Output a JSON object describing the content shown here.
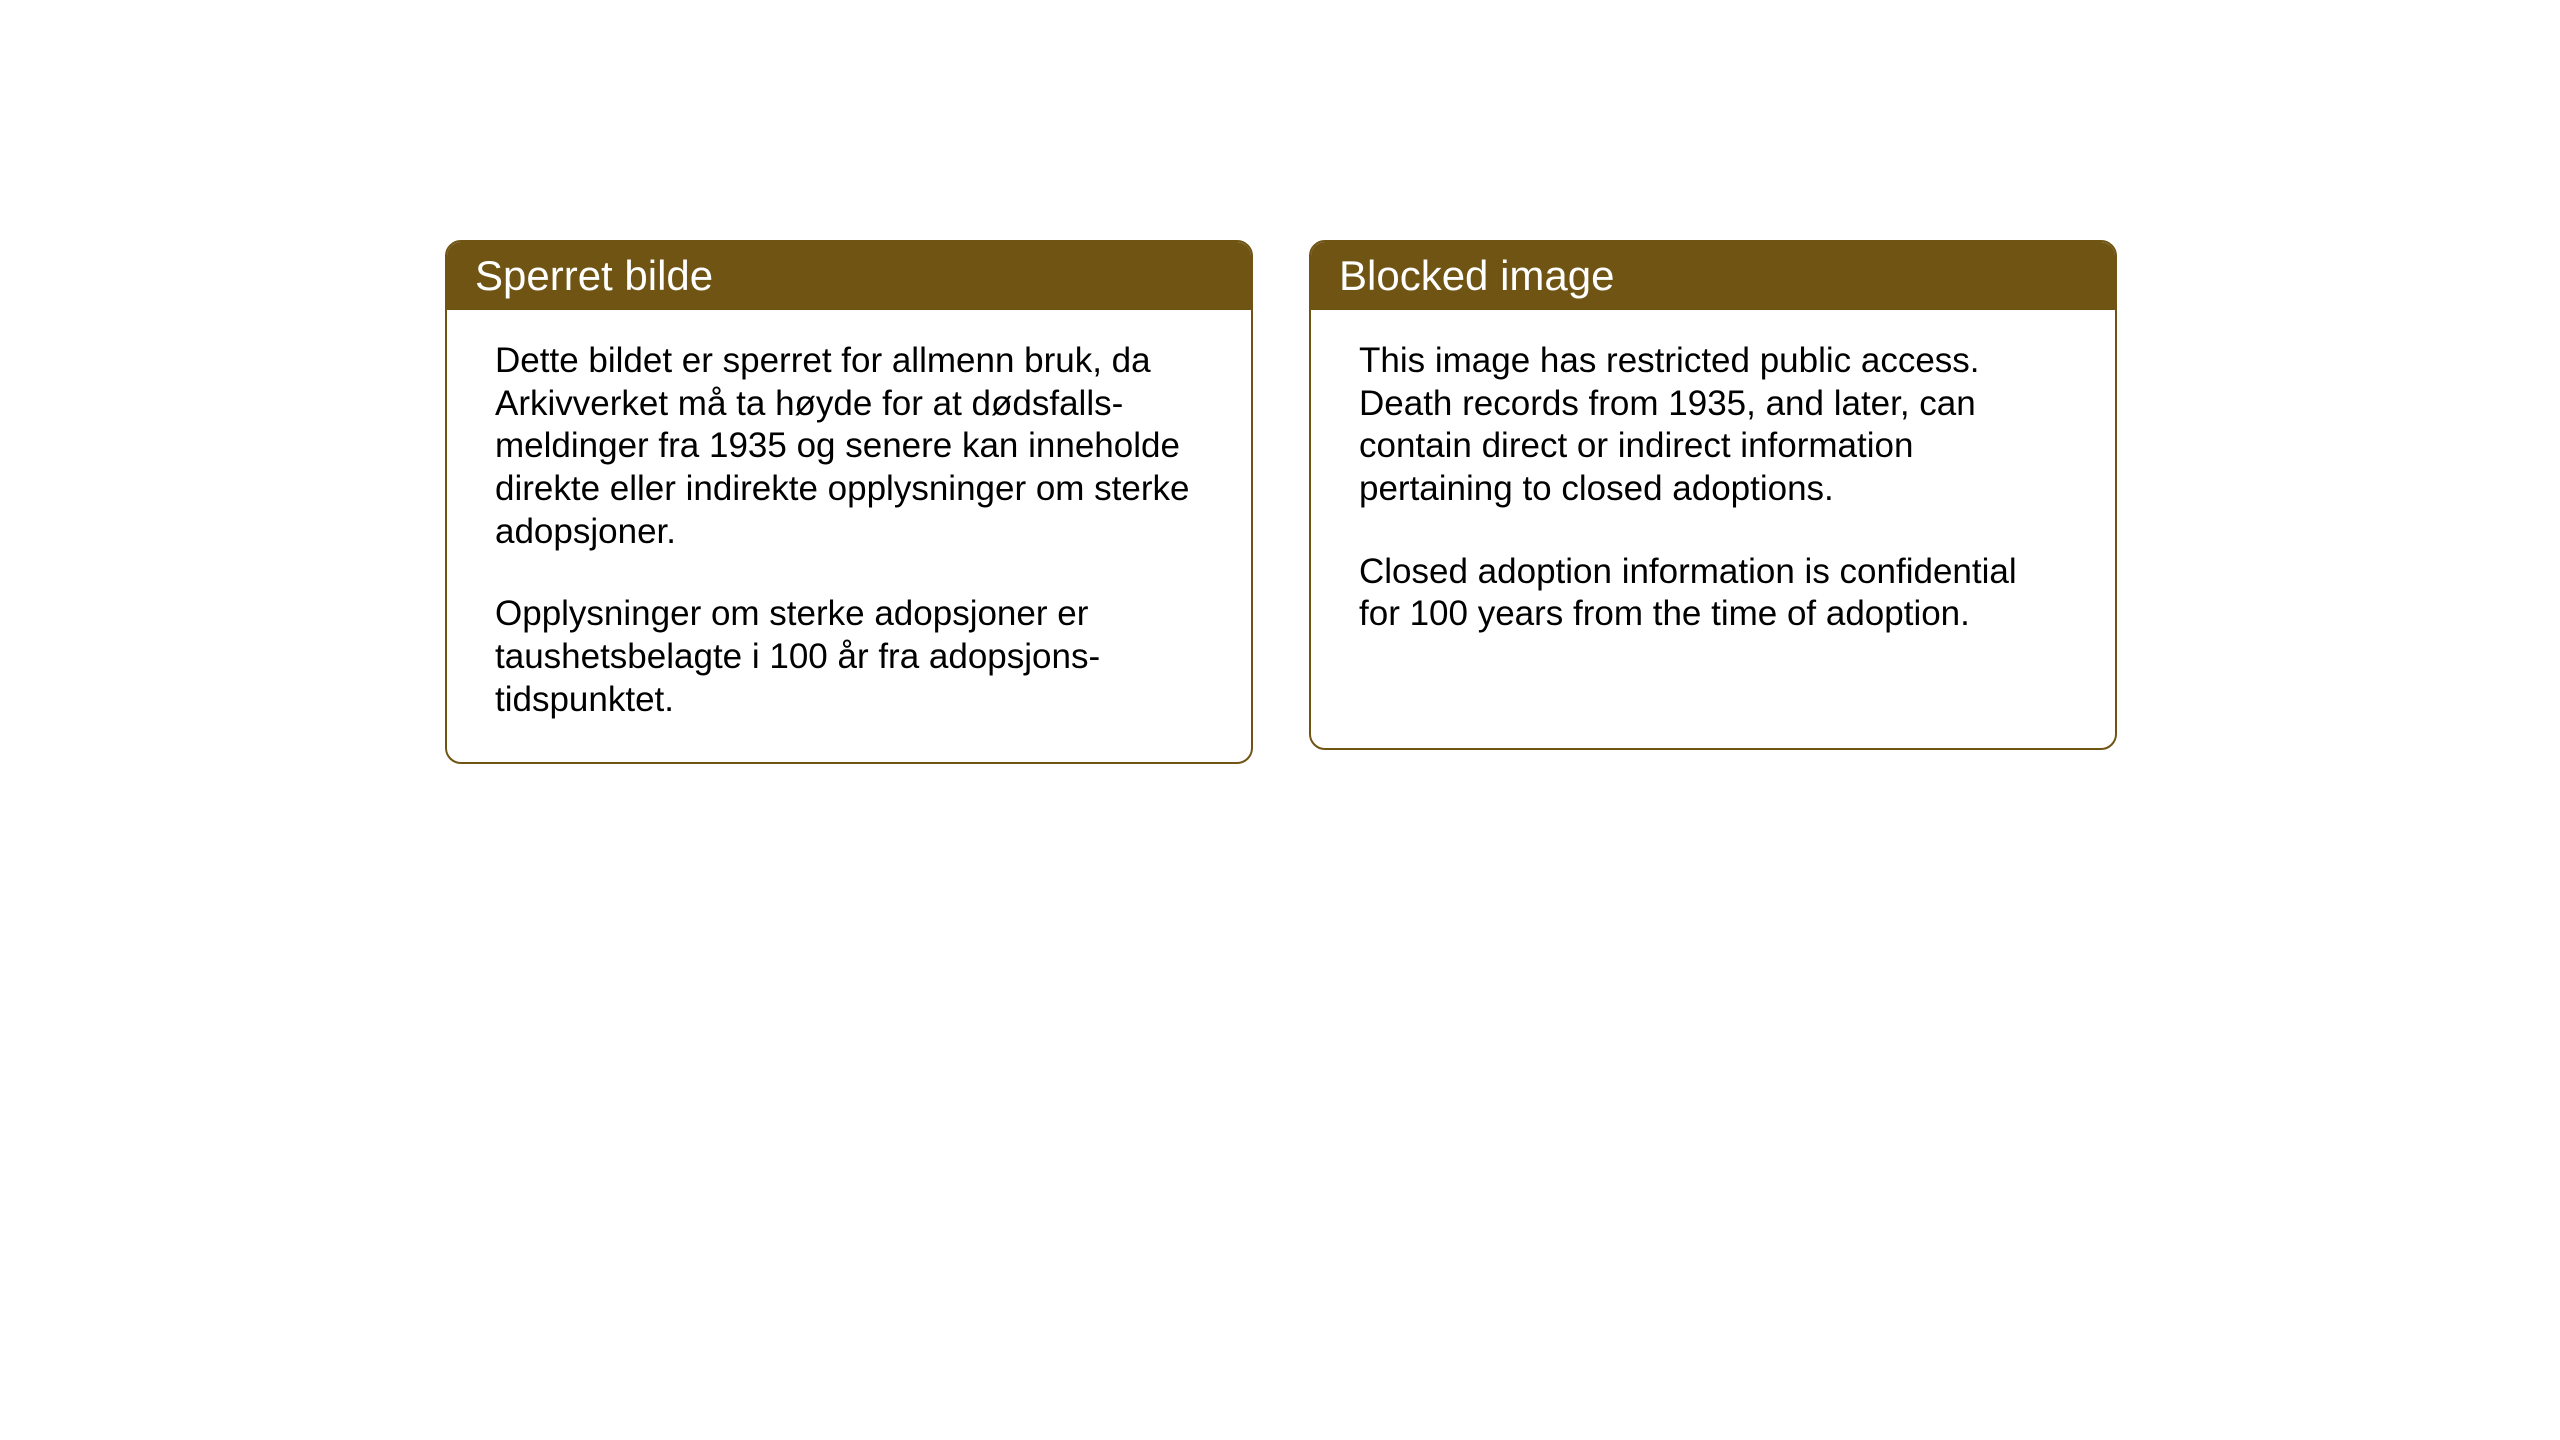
{
  "layout": {
    "background_color": "#ffffff",
    "card_border_color": "#6f5414",
    "card_border_radius": 16,
    "header_background_color": "#6f5414",
    "header_text_color": "#ffffff",
    "body_text_color": "#000000",
    "header_fontsize": 42,
    "body_fontsize": 35
  },
  "cards": {
    "norwegian": {
      "title": "Sperret bilde",
      "paragraph1": "Dette bildet er sperret for allmenn bruk, da Arkivverket må ta høyde for at dødsfalls-meldinger fra 1935 og senere kan inneholde direkte eller indirekte opplysninger om sterke adopsjoner.",
      "paragraph2": "Opplysninger om sterke adopsjoner er taushetsbelagte i 100 år fra adopsjons-tidspunktet."
    },
    "english": {
      "title": "Blocked image",
      "paragraph1": "This image has restricted public access. Death records from 1935, and later, can contain direct or indirect information pertaining to closed adoptions.",
      "paragraph2": "Closed adoption information is confidential for 100 years from the time of adoption."
    }
  }
}
